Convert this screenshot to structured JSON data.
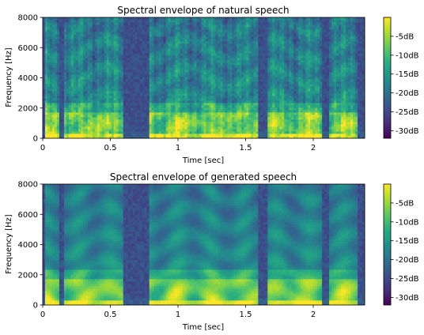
{
  "colormap": {
    "name": "viridis",
    "stops": [
      "#440154",
      "#472f7d",
      "#3b528b",
      "#2c728e",
      "#21918c",
      "#27ad81",
      "#5ec962",
      "#aadc32",
      "#fde725"
    ]
  },
  "chart_data": [
    {
      "type": "heatmap",
      "title": "Spectral envelope of natural speech",
      "xlabel": "Time [sec]",
      "ylabel": "Frequency [Hz]",
      "xlim": [
        0,
        2.38
      ],
      "ylim": [
        0,
        8000
      ],
      "xticks": [
        0,
        0.5,
        1,
        1.5,
        2
      ],
      "xtick_labels": [
        "0",
        "0.5",
        "1",
        "1.5",
        "2"
      ],
      "yticks": [
        0,
        2000,
        4000,
        6000,
        8000
      ],
      "ytick_labels": [
        "0",
        "2000",
        "4000",
        "6000",
        "8000"
      ],
      "colorbar": {
        "range_db": [
          -32,
          0
        ],
        "ticks": [
          -5,
          -10,
          -15,
          -20,
          -25,
          -30
        ],
        "tick_labels": [
          "-5dB",
          "-10dB",
          "-15dB",
          "-20dB",
          "-25dB",
          "-30dB"
        ]
      },
      "silence_intervals_sec": [
        [
          0.0,
          0.02
        ],
        [
          0.12,
          0.15
        ],
        [
          0.6,
          0.78
        ],
        [
          1.6,
          1.66
        ],
        [
          2.07,
          2.12
        ],
        [
          2.33,
          2.38
        ]
      ],
      "texture": "fine"
    },
    {
      "type": "heatmap",
      "title": "Spectral envelope of generated speech",
      "xlabel": "Time [sec]",
      "ylabel": "Frequency [Hz]",
      "xlim": [
        0,
        2.38
      ],
      "ylim": [
        0,
        8000
      ],
      "xticks": [
        0,
        0.5,
        1,
        1.5,
        2
      ],
      "xtick_labels": [
        "0",
        "0.5",
        "1",
        "1.5",
        "2"
      ],
      "yticks": [
        0,
        2000,
        4000,
        6000,
        8000
      ],
      "ytick_labels": [
        "0",
        "2000",
        "4000",
        "6000",
        "8000"
      ],
      "colorbar": {
        "range_db": [
          -32,
          0
        ],
        "ticks": [
          -5,
          -10,
          -15,
          -20,
          -25,
          -30
        ],
        "tick_labels": [
          "-5dB",
          "-10dB",
          "-15dB",
          "-20dB",
          "-25dB",
          "-30dB"
        ]
      },
      "silence_intervals_sec": [
        [
          0.0,
          0.02
        ],
        [
          0.12,
          0.15
        ],
        [
          0.6,
          0.78
        ],
        [
          1.6,
          1.66
        ],
        [
          2.07,
          2.12
        ],
        [
          2.33,
          2.38
        ]
      ],
      "texture": "smooth"
    }
  ]
}
